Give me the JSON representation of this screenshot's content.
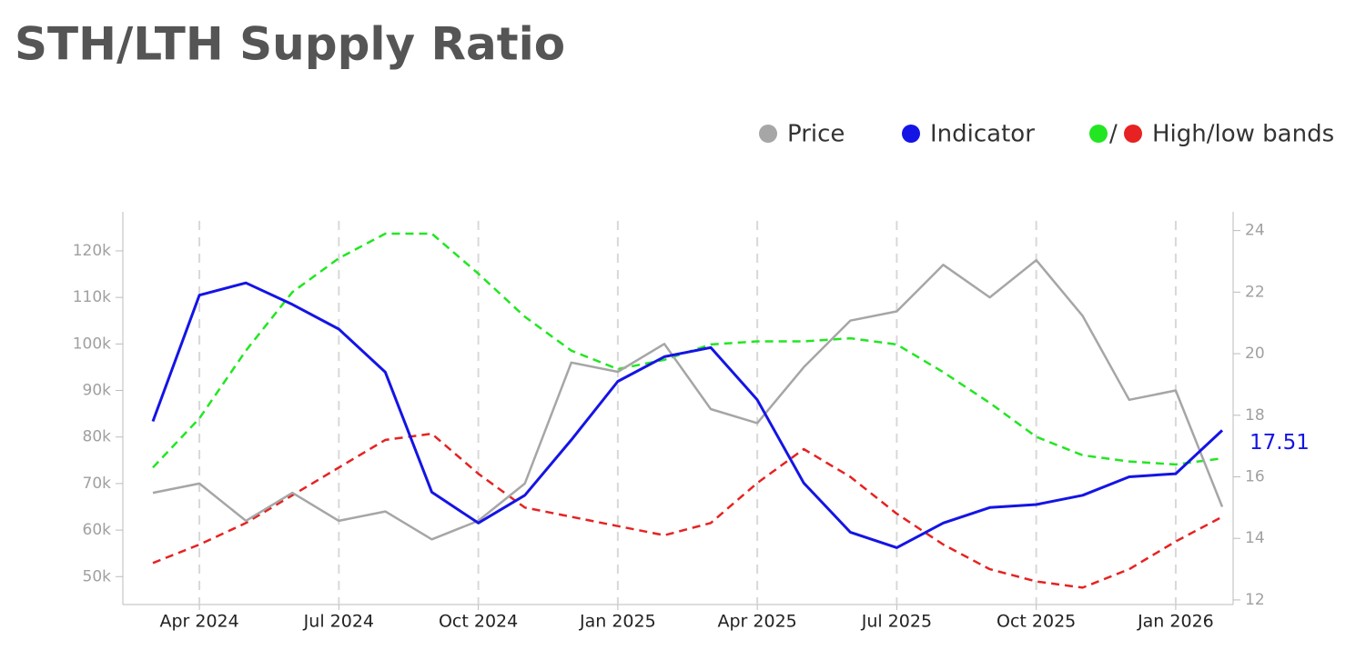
{
  "chart_data": {
    "type": "line",
    "title": "STH/LTH Supply Ratio",
    "x": [
      "2024-03",
      "2024-04",
      "2024-05",
      "2024-06",
      "2024-07",
      "2024-08",
      "2024-09",
      "2024-10",
      "2024-11",
      "2024-12",
      "2025-01",
      "2025-02",
      "2025-03",
      "2025-04",
      "2025-05",
      "2025-06",
      "2025-07",
      "2025-08",
      "2025-09",
      "2025-10",
      "2025-11",
      "2025-12",
      "2026-01",
      "2026-02"
    ],
    "xlim": [
      "2024-03",
      "2026-02"
    ],
    "xticks": [
      {
        "value": "2024-04",
        "label": "Apr 2024"
      },
      {
        "value": "2024-07",
        "label": "Jul 2024"
      },
      {
        "value": "2024-10",
        "label": "Oct 2024"
      },
      {
        "value": "2025-01",
        "label": "Jan 2025"
      },
      {
        "value": "2025-04",
        "label": "Apr 2025"
      },
      {
        "value": "2025-07",
        "label": "Jul 2025"
      },
      {
        "value": "2025-10",
        "label": "Oct 2025"
      },
      {
        "value": "2026-01",
        "label": "Jan 2026"
      }
    ],
    "ylim": [
      44000,
      128000
    ],
    "yticks": [
      {
        "value": 50000,
        "label": "50k"
      },
      {
        "value": 60000,
        "label": "60k"
      },
      {
        "value": 70000,
        "label": "70k"
      },
      {
        "value": 80000,
        "label": "80k"
      },
      {
        "value": 90000,
        "label": "90k"
      },
      {
        "value": 100000,
        "label": "100k"
      },
      {
        "value": 110000,
        "label": "110k"
      },
      {
        "value": 120000,
        "label": "120k"
      }
    ],
    "y2lim": [
      11.85,
      24.55
    ],
    "y2ticks": [
      12,
      14,
      16,
      18,
      20,
      22,
      24
    ],
    "grid": true,
    "series": [
      {
        "name": "Price",
        "color": "#a6a6a6",
        "values": [
          68000,
          70000,
          62000,
          68000,
          62000,
          64000,
          58000,
          62000,
          70000,
          96000,
          94000,
          100000,
          86000,
          83000,
          95000,
          105000,
          107000,
          117000,
          110000,
          118000,
          106000,
          88000,
          90000,
          65000
        ]
      },
      {
        "name": "Indicator",
        "color": "#1414e6",
        "axis": "y2",
        "values": [
          17.8,
          21.9,
          22.3,
          21.6,
          20.8,
          19.4,
          15.5,
          14.5,
          15.4,
          17.2,
          19.1,
          19.9,
          20.2,
          18.5,
          15.8,
          14.2,
          13.7,
          14.5,
          15.0,
          15.1,
          15.4,
          16.0,
          16.1,
          17.51
        ]
      }
    ],
    "bands": {
      "name": "High/low bands",
      "high": {
        "color": "#22e622",
        "axis": "y2",
        "values": [
          16.3,
          17.9,
          20.1,
          22.0,
          23.1,
          23.9,
          23.9,
          22.6,
          21.2,
          20.1,
          19.5,
          19.8,
          20.3,
          20.4,
          20.4,
          20.5,
          20.3,
          19.4,
          18.4,
          17.3,
          16.7,
          16.5,
          16.4,
          16.6
        ]
      },
      "low": {
        "color": "#e62222",
        "axis": "y2",
        "values": [
          13.2,
          13.8,
          14.5,
          15.4,
          16.3,
          17.2,
          17.4,
          16.1,
          15.0,
          14.7,
          14.4,
          14.1,
          14.5,
          15.8,
          16.9,
          16.0,
          14.8,
          13.8,
          13.0,
          12.6,
          12.4,
          13.0,
          13.9,
          14.7
        ]
      }
    },
    "last_value": 17.51
  }
}
